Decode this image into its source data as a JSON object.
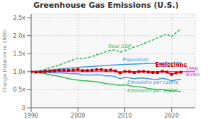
{
  "chart_data": {
    "type": "line",
    "title": "Greenhouse Gas Emissions (U.S.)",
    "ylabel": "Change (relative to 1990)",
    "xlim": [
      1990,
      2025
    ],
    "ylim": [
      0.0,
      2.6
    ],
    "xticks": [
      1990,
      2000,
      2010,
      2020
    ],
    "yticks": [
      0,
      {
        "value": 0.5,
        "label": "0.5x"
      },
      {
        "value": 1.0,
        "label": "1.0x"
      },
      {
        "value": 1.5,
        "label": "1.5x"
      },
      {
        "value": 2.0,
        "label": "2.0x"
      },
      {
        "value": 2.5,
        "label": "2.5x"
      }
    ],
    "grid": true,
    "x": [
      1990,
      1991,
      1992,
      1993,
      1994,
      1995,
      1996,
      1997,
      1998,
      1999,
      2000,
      2001,
      2002,
      2003,
      2004,
      2005,
      2006,
      2007,
      2008,
      2009,
      2010,
      2011,
      2012,
      2013,
      2014,
      2015,
      2016,
      2017,
      2018,
      2019,
      2020,
      2021,
      2022
    ],
    "series": [
      {
        "name": "Real GDP",
        "color": "#33bb55",
        "line_style": "dashed",
        "values": [
          1.0,
          0.988,
          1.03,
          1.065,
          1.115,
          1.145,
          1.188,
          1.238,
          1.285,
          1.33,
          1.375,
          1.37,
          1.388,
          1.42,
          1.47,
          1.513,
          1.555,
          1.595,
          1.605,
          1.538,
          1.59,
          1.635,
          1.685,
          1.72,
          1.778,
          1.838,
          1.882,
          1.942,
          2.0,
          2.042,
          1.968,
          2.092,
          2.185
        ]
      },
      {
        "name": "Population",
        "color": "#4499dd",
        "line_style": "solid",
        "values": [
          1.0,
          1.013,
          1.026,
          1.037,
          1.049,
          1.061,
          1.073,
          1.085,
          1.097,
          1.108,
          1.12,
          1.129,
          1.138,
          1.146,
          1.155,
          1.164,
          1.173,
          1.181,
          1.189,
          1.195,
          1.201,
          1.207,
          1.213,
          1.218,
          1.224,
          1.23,
          1.234,
          1.237,
          1.24,
          1.243,
          1.243,
          1.245,
          1.25
        ]
      },
      {
        "name": "Emissions per capita",
        "color": "#4499dd",
        "line_style": "solid",
        "values": [
          1.0,
          0.975,
          0.97,
          0.971,
          0.97,
          0.966,
          0.969,
          0.961,
          0.946,
          0.943,
          0.945,
          0.912,
          0.908,
          0.907,
          0.917,
          0.91,
          0.885,
          0.887,
          0.86,
          0.808,
          0.84,
          0.831,
          0.806,
          0.821,
          0.824,
          0.805,
          0.791,
          0.789,
          0.814,
          0.794,
          0.744,
          0.778,
          0.788
        ]
      },
      {
        "name": "Emissions per $GDP",
        "color": "#33bb55",
        "line_style": "solid",
        "values": [
          1.0,
          0.999,
          0.965,
          0.945,
          0.913,
          0.895,
          0.876,
          0.842,
          0.807,
          0.785,
          0.769,
          0.752,
          0.744,
          0.733,
          0.72,
          0.699,
          0.668,
          0.657,
          0.637,
          0.627,
          0.634,
          0.614,
          0.58,
          0.581,
          0.566,
          0.538,
          0.52,
          0.503,
          0.505,
          0.484,
          0.47,
          0.463,
          0.451
        ]
      },
      {
        "name": "Emissions",
        "color": "#cc0000",
        "line_style": "solid",
        "marker": "square",
        "values": [
          1.0,
          0.987,
          0.995,
          1.007,
          1.018,
          1.025,
          1.04,
          1.042,
          1.038,
          1.045,
          1.058,
          1.03,
          1.033,
          1.04,
          1.058,
          1.06,
          1.038,
          1.05,
          1.022,
          0.965,
          1.008,
          1.003,
          0.978,
          1.0,
          1.008,
          0.99,
          0.978,
          0.978,
          1.01,
          0.988,
          0.925,
          0.968,
          0.985
        ]
      }
    ],
    "reference_lines": [
      {
        "y": 1.0,
        "color": "#ee44ee"
      }
    ],
    "annotations": [
      {
        "text": "1990\nlevels",
        "x": 2022.8,
        "y": 1.0,
        "color": "#cc33cc"
      },
      {
        "text": "Real GDP",
        "x": 2006.5,
        "y": 1.63,
        "color": "#33bb55"
      },
      {
        "text": "Population",
        "x": 2009.5,
        "y": 1.245,
        "color": "#4499dd"
      },
      {
        "text": "Emissions per capita",
        "x": 2010.5,
        "y": 0.79,
        "color": "#4499dd"
      },
      {
        "text": "Emissions per $GDP",
        "x": 2010.5,
        "y": 0.56,
        "color": "#33bb55"
      },
      {
        "text": "Emissions",
        "x": 2016.5,
        "y": 1.085,
        "color": "#cc0000"
      }
    ]
  }
}
